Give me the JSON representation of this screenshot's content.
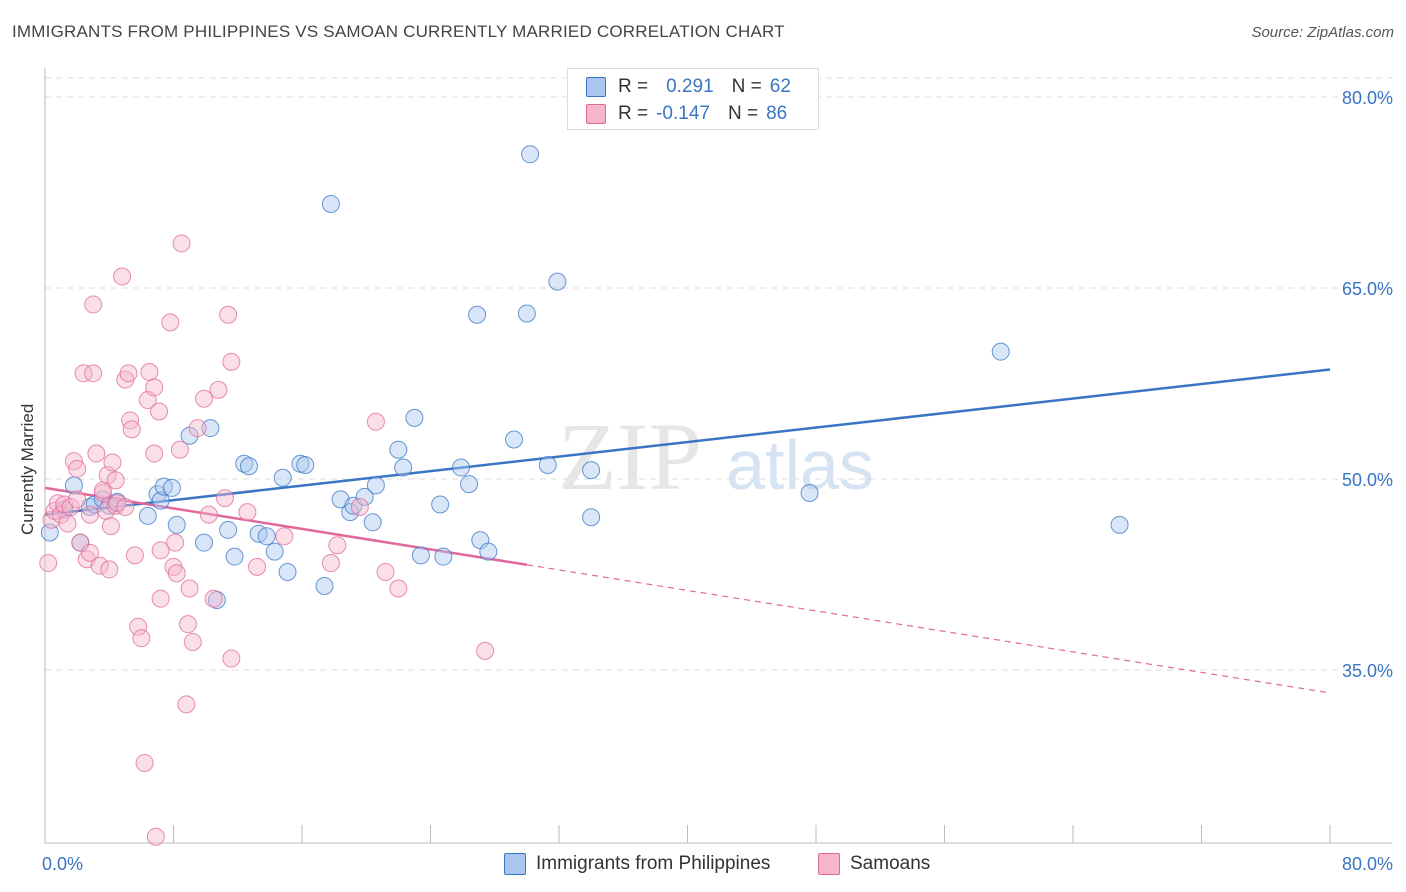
{
  "title": "IMMIGRANTS FROM PHILIPPINES VS SAMOAN CURRENTLY MARRIED CORRELATION CHART",
  "source": "Source: ZipAtlas.com",
  "watermark": {
    "zip": "ZIP",
    "atlas": "atlas"
  },
  "colors": {
    "blue": "#3a75c4",
    "blue_fill": "#a9c7ee",
    "pink": "#e0689a",
    "pink_fill": "#f5b5cb",
    "grid": "#dddddd",
    "axis_text": "#3a75c4"
  },
  "legend": {
    "rows": [
      {
        "r_label": "R =",
        "r_value": "0.291",
        "n_label": "N =",
        "n_value": "62"
      },
      {
        "r_label": "R =",
        "r_value": "-0.147",
        "n_label": "N =",
        "n_value": "86"
      }
    ]
  },
  "bottom_legend": [
    {
      "label": "Immigrants from Philippines"
    },
    {
      "label": "Samoans"
    }
  ],
  "chart_data": {
    "type": "scatter",
    "title": "IMMIGRANTS FROM PHILIPPINES VS SAMOAN CURRENTLY MARRIED CORRELATION CHART",
    "xlabel": "",
    "ylabel": "Currently Married",
    "xlim": [
      0,
      80
    ],
    "ylim": [
      20,
      82
    ],
    "x_tick_labels": [
      "0.0%",
      "80.0%"
    ],
    "y_ticks": [
      35,
      50,
      65,
      80
    ],
    "y_tick_labels": [
      "35.0%",
      "50.0%",
      "65.0%",
      "80.0%"
    ],
    "grid": true,
    "series": [
      {
        "name": "Immigrants from Philippines",
        "color": "#3a75c4",
        "R": 0.291,
        "N": 62,
        "trend": {
          "x": [
            0,
            80
          ],
          "y": [
            47.2,
            58.6
          ],
          "dashed_from": null
        },
        "points": [
          [
            0.3,
            45.8
          ],
          [
            1.2,
            47.6
          ],
          [
            1.8,
            49.5
          ],
          [
            2.2,
            45.0
          ],
          [
            2.8,
            47.8
          ],
          [
            3.1,
            48.0
          ],
          [
            3.6,
            48.4
          ],
          [
            4.0,
            47.9
          ],
          [
            4.5,
            48.2
          ],
          [
            6.4,
            47.1
          ],
          [
            7.0,
            48.8
          ],
          [
            7.2,
            48.3
          ],
          [
            7.4,
            49.4
          ],
          [
            7.9,
            49.3
          ],
          [
            8.2,
            46.4
          ],
          [
            9.0,
            53.4
          ],
          [
            9.9,
            45.0
          ],
          [
            10.3,
            54.0
          ],
          [
            10.7,
            40.5
          ],
          [
            11.4,
            46.0
          ],
          [
            11.8,
            43.9
          ],
          [
            12.4,
            51.2
          ],
          [
            12.7,
            51.0
          ],
          [
            13.3,
            45.7
          ],
          [
            13.8,
            45.5
          ],
          [
            14.3,
            44.3
          ],
          [
            14.8,
            50.1
          ],
          [
            15.1,
            42.7
          ],
          [
            15.9,
            51.2
          ],
          [
            16.2,
            51.1
          ],
          [
            17.4,
            41.6
          ],
          [
            17.8,
            71.6
          ],
          [
            18.4,
            48.4
          ],
          [
            19.0,
            47.4
          ],
          [
            19.2,
            47.9
          ],
          [
            19.9,
            48.6
          ],
          [
            20.4,
            46.6
          ],
          [
            20.6,
            49.5
          ],
          [
            22.0,
            52.3
          ],
          [
            22.3,
            50.9
          ],
          [
            23.0,
            54.8
          ],
          [
            23.4,
            44.0
          ],
          [
            24.6,
            48.0
          ],
          [
            24.8,
            43.9
          ],
          [
            25.9,
            50.9
          ],
          [
            26.4,
            49.6
          ],
          [
            26.9,
            62.9
          ],
          [
            27.1,
            45.2
          ],
          [
            27.6,
            44.3
          ],
          [
            29.2,
            53.1
          ],
          [
            30.0,
            63.0
          ],
          [
            30.2,
            75.5
          ],
          [
            31.3,
            51.1
          ],
          [
            31.9,
            65.5
          ],
          [
            34.0,
            47.0
          ],
          [
            34.0,
            50.7
          ],
          [
            47.6,
            48.9
          ],
          [
            59.5,
            60.0
          ],
          [
            66.9,
            46.4
          ]
        ]
      },
      {
        "name": "Samoans",
        "color": "#e0689a",
        "R": -0.147,
        "N": 86,
        "trend": {
          "x": [
            0,
            80
          ],
          "y": [
            49.3,
            33.2
          ],
          "dashed_from": 30
        },
        "points": [
          [
            0.2,
            43.4
          ],
          [
            0.4,
            46.8
          ],
          [
            0.6,
            47.5
          ],
          [
            0.8,
            48.1
          ],
          [
            1.0,
            47.2
          ],
          [
            1.2,
            48.0
          ],
          [
            1.4,
            46.5
          ],
          [
            1.6,
            47.8
          ],
          [
            1.8,
            51.4
          ],
          [
            2.0,
            48.4
          ],
          [
            2.0,
            50.8
          ],
          [
            2.2,
            45.0
          ],
          [
            2.4,
            58.3
          ],
          [
            2.6,
            43.7
          ],
          [
            2.8,
            44.2
          ],
          [
            2.8,
            47.2
          ],
          [
            3.0,
            58.3
          ],
          [
            3.0,
            63.7
          ],
          [
            3.2,
            52.0
          ],
          [
            3.4,
            43.2
          ],
          [
            3.6,
            48.9
          ],
          [
            3.6,
            49.1
          ],
          [
            3.8,
            47.5
          ],
          [
            3.9,
            50.3
          ],
          [
            4.0,
            42.9
          ],
          [
            4.1,
            46.3
          ],
          [
            4.2,
            51.3
          ],
          [
            4.4,
            47.9
          ],
          [
            4.4,
            49.9
          ],
          [
            4.5,
            48.1
          ],
          [
            4.8,
            65.9
          ],
          [
            5.0,
            47.8
          ],
          [
            5.0,
            57.8
          ],
          [
            5.2,
            58.3
          ],
          [
            5.3,
            54.6
          ],
          [
            5.4,
            53.9
          ],
          [
            5.6,
            44.0
          ],
          [
            5.8,
            38.4
          ],
          [
            6.0,
            37.5
          ],
          [
            6.2,
            27.7
          ],
          [
            6.4,
            56.2
          ],
          [
            6.5,
            58.4
          ],
          [
            6.8,
            52.0
          ],
          [
            6.8,
            57.2
          ],
          [
            6.9,
            21.9
          ],
          [
            7.1,
            55.3
          ],
          [
            7.2,
            40.6
          ],
          [
            7.2,
            44.4
          ],
          [
            7.8,
            62.3
          ],
          [
            8.0,
            43.1
          ],
          [
            8.1,
            45.0
          ],
          [
            8.2,
            42.6
          ],
          [
            8.4,
            52.3
          ],
          [
            8.5,
            68.5
          ],
          [
            8.8,
            32.3
          ],
          [
            8.9,
            38.6
          ],
          [
            9.0,
            41.4
          ],
          [
            9.2,
            37.2
          ],
          [
            9.5,
            54.0
          ],
          [
            9.9,
            56.3
          ],
          [
            10.2,
            47.2
          ],
          [
            10.5,
            40.6
          ],
          [
            10.8,
            57.0
          ],
          [
            11.2,
            48.5
          ],
          [
            11.4,
            62.9
          ],
          [
            11.6,
            35.9
          ],
          [
            11.6,
            59.2
          ],
          [
            12.6,
            47.4
          ],
          [
            13.2,
            43.1
          ],
          [
            14.9,
            45.5
          ],
          [
            17.8,
            43.4
          ],
          [
            18.2,
            44.8
          ],
          [
            19.6,
            47.8
          ],
          [
            20.6,
            54.5
          ],
          [
            21.2,
            42.7
          ],
          [
            22.0,
            41.4
          ],
          [
            27.4,
            36.5
          ]
        ]
      }
    ]
  }
}
